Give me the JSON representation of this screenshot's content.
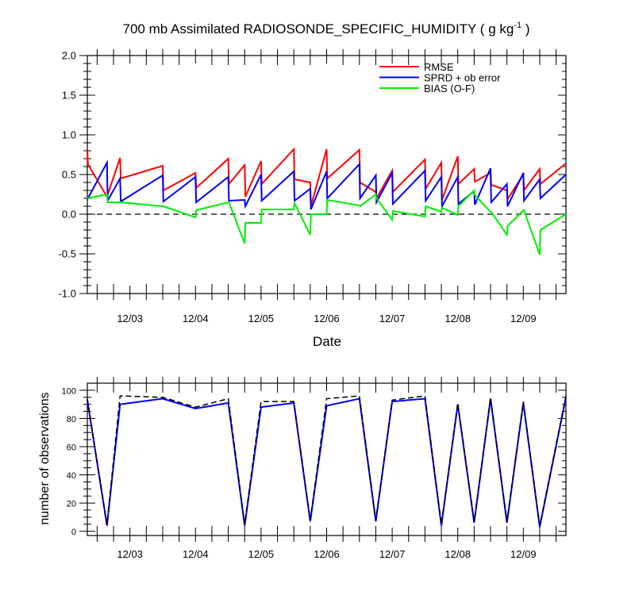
{
  "chart_data": [
    {
      "type": "line",
      "title": "700 mb Assimilated RADIOSONDE_SPECIFIC_HUMIDITY ( g kg",
      "title_sup": "-1",
      "title_end": " )",
      "xlabel": "Date",
      "ylabel": "",
      "ylim": [
        -1.0,
        2.0
      ],
      "yticks": [
        "-1.0",
        "-0.5",
        "0.0",
        "0.5",
        "1.0",
        "1.5",
        "2.0"
      ],
      "xlim": [
        2.35,
        9.65
      ],
      "xtick_labels": [
        "12/03",
        "12/04",
        "12/05",
        "12/06",
        "12/07",
        "12/08",
        "12/09"
      ],
      "zero_line": "dashed",
      "legend_position": "top-right",
      "series": [
        {
          "name": "RMSE",
          "color": "#ff0000",
          "points": [
            [
              2.35,
              0.8
            ],
            [
              2.36,
              0.63
            ],
            [
              2.65,
              0.22
            ],
            [
              2.85,
              0.71
            ],
            [
              2.86,
              0.45
            ],
            [
              3.5,
              0.61
            ],
            [
              3.51,
              0.3
            ],
            [
              4.0,
              0.52
            ],
            [
              4.01,
              0.33
            ],
            [
              4.5,
              0.7
            ],
            [
              4.51,
              0.38
            ],
            [
              4.75,
              0.62
            ],
            [
              4.76,
              0.22
            ],
            [
              5.0,
              0.67
            ],
            [
              5.01,
              0.38
            ],
            [
              5.5,
              0.82
            ],
            [
              5.51,
              0.44
            ],
            [
              5.75,
              0.4
            ],
            [
              5.76,
              0.1
            ],
            [
              6.0,
              0.82
            ],
            [
              6.01,
              0.45
            ],
            [
              6.5,
              0.81
            ],
            [
              6.51,
              0.4
            ],
            [
              6.75,
              0.28
            ],
            [
              6.76,
              0.2
            ],
            [
              7.0,
              0.55
            ],
            [
              7.01,
              0.28
            ],
            [
              7.5,
              0.69
            ],
            [
              7.51,
              0.32
            ],
            [
              7.75,
              0.65
            ],
            [
              7.76,
              0.18
            ],
            [
              8.0,
              0.73
            ],
            [
              8.01,
              0.38
            ],
            [
              8.25,
              0.57
            ],
            [
              8.26,
              0.41
            ],
            [
              8.5,
              0.52
            ],
            [
              8.51,
              0.37
            ],
            [
              8.75,
              0.3
            ],
            [
              8.76,
              0.19
            ],
            [
              9.0,
              0.5
            ],
            [
              9.01,
              0.3
            ],
            [
              9.25,
              0.57
            ],
            [
              9.26,
              0.38
            ],
            [
              9.65,
              0.64
            ]
          ]
        },
        {
          "name": "SPRD + ob error",
          "color": "#0000ff",
          "points": [
            [
              2.35,
              0.21
            ],
            [
              2.36,
              0.2
            ],
            [
              2.65,
              0.65
            ],
            [
              2.66,
              0.17
            ],
            [
              2.85,
              0.45
            ],
            [
              2.86,
              0.16
            ],
            [
              3.5,
              0.49
            ],
            [
              3.51,
              0.16
            ],
            [
              4.0,
              0.47
            ],
            [
              4.01,
              0.15
            ],
            [
              4.5,
              0.47
            ],
            [
              4.51,
              0.17
            ],
            [
              4.75,
              0.18
            ],
            [
              4.76,
              0.1
            ],
            [
              5.0,
              0.5
            ],
            [
              5.01,
              0.17
            ],
            [
              5.5,
              0.54
            ],
            [
              5.51,
              0.17
            ],
            [
              5.75,
              0.32
            ],
            [
              5.76,
              0.06
            ],
            [
              6.0,
              0.54
            ],
            [
              6.01,
              0.2
            ],
            [
              6.5,
              0.63
            ],
            [
              6.51,
              0.2
            ],
            [
              6.75,
              0.49
            ],
            [
              6.76,
              0.15
            ],
            [
              7.0,
              0.52
            ],
            [
              7.01,
              0.13
            ],
            [
              7.5,
              0.55
            ],
            [
              7.51,
              0.17
            ],
            [
              7.75,
              0.47
            ],
            [
              7.76,
              0.1
            ],
            [
              8.0,
              0.47
            ],
            [
              8.01,
              0.13
            ],
            [
              8.25,
              0.29
            ],
            [
              8.26,
              0.12
            ],
            [
              8.5,
              0.58
            ],
            [
              8.51,
              0.15
            ],
            [
              8.75,
              0.38
            ],
            [
              8.76,
              0.1
            ],
            [
              9.0,
              0.52
            ],
            [
              9.01,
              0.17
            ],
            [
              9.25,
              0.44
            ],
            [
              9.26,
              0.2
            ],
            [
              9.65,
              0.5
            ]
          ]
        },
        {
          "name": "BIAS (O-F)",
          "color": "#00ee00",
          "points": [
            [
              2.35,
              0.2
            ],
            [
              2.65,
              0.25
            ],
            [
              2.66,
              0.15
            ],
            [
              2.85,
              0.15
            ],
            [
              2.86,
              0.15
            ],
            [
              3.5,
              0.1
            ],
            [
              3.51,
              0.1
            ],
            [
              4.0,
              -0.04
            ],
            [
              4.01,
              0.05
            ],
            [
              4.5,
              0.15
            ],
            [
              4.51,
              0.15
            ],
            [
              4.75,
              -0.37
            ],
            [
              4.76,
              -0.11
            ],
            [
              5.0,
              -0.11
            ],
            [
              5.01,
              0.06
            ],
            [
              5.5,
              0.06
            ],
            [
              5.51,
              0.14
            ],
            [
              5.75,
              -0.26
            ],
            [
              5.76,
              0.0
            ],
            [
              6.0,
              0.0
            ],
            [
              6.01,
              0.18
            ],
            [
              6.5,
              0.11
            ],
            [
              6.51,
              0.1
            ],
            [
              6.75,
              0.25
            ],
            [
              6.76,
              0.2
            ],
            [
              7.0,
              -0.07
            ],
            [
              7.01,
              0.04
            ],
            [
              7.5,
              -0.03
            ],
            [
              7.51,
              0.1
            ],
            [
              7.75,
              0.03
            ],
            [
              7.76,
              0.08
            ],
            [
              8.0,
              -0.01
            ],
            [
              8.01,
              0.1
            ],
            [
              8.25,
              0.3
            ],
            [
              8.26,
              0.24
            ],
            [
              8.5,
              0.03
            ],
            [
              8.51,
              0.03
            ],
            [
              8.75,
              -0.26
            ],
            [
              8.76,
              -0.15
            ],
            [
              9.0,
              0.05
            ],
            [
              9.01,
              0.05
            ],
            [
              9.25,
              -0.51
            ],
            [
              9.26,
              -0.2
            ],
            [
              9.65,
              0.0
            ]
          ]
        }
      ]
    },
    {
      "type": "line",
      "title": "",
      "xlabel": "",
      "ylabel": "number of observations",
      "ylim": [
        -3,
        105
      ],
      "yticks": [
        "0",
        "20",
        "40",
        "60",
        "80",
        "100"
      ],
      "xlim": [
        2.35,
        9.65
      ],
      "xtick_labels": [
        "12/03",
        "12/04",
        "12/05",
        "12/06",
        "12/07",
        "12/08",
        "12/09"
      ],
      "series": [
        {
          "name": "",
          "color": "#0000ff",
          "style": "solid",
          "points": [
            [
              2.35,
              93
            ],
            [
              2.65,
              4
            ],
            [
              2.85,
              90
            ],
            [
              3.5,
              94
            ],
            [
              4.0,
              87
            ],
            [
              4.5,
              91
            ],
            [
              4.75,
              4
            ],
            [
              5.0,
              88
            ],
            [
              5.5,
              91
            ],
            [
              5.75,
              7
            ],
            [
              6.0,
              89
            ],
            [
              6.5,
              94
            ],
            [
              6.75,
              7
            ],
            [
              7.0,
              92
            ],
            [
              7.5,
              94
            ],
            [
              7.75,
              4
            ],
            [
              8.0,
              90
            ],
            [
              8.25,
              6
            ],
            [
              8.5,
              94
            ],
            [
              8.75,
              6
            ],
            [
              9.0,
              91
            ],
            [
              9.25,
              3
            ],
            [
              9.65,
              95
            ]
          ]
        },
        {
          "name": "",
          "color": "#000000",
          "style": "dashed",
          "points": [
            [
              2.35,
              94
            ],
            [
              2.65,
              5
            ],
            [
              2.85,
              96
            ],
            [
              3.5,
              95
            ],
            [
              4.0,
              88
            ],
            [
              4.5,
              94
            ],
            [
              4.75,
              5
            ],
            [
              5.0,
              92
            ],
            [
              5.5,
              92
            ],
            [
              5.75,
              8
            ],
            [
              6.0,
              94
            ],
            [
              6.5,
              96
            ],
            [
              6.75,
              8
            ],
            [
              7.0,
              93
            ],
            [
              7.5,
              96
            ],
            [
              7.75,
              5
            ],
            [
              8.0,
              91
            ],
            [
              8.25,
              7
            ],
            [
              8.5,
              95
            ],
            [
              8.75,
              7
            ],
            [
              9.0,
              92
            ],
            [
              9.25,
              4
            ],
            [
              9.65,
              96
            ]
          ]
        }
      ]
    }
  ]
}
